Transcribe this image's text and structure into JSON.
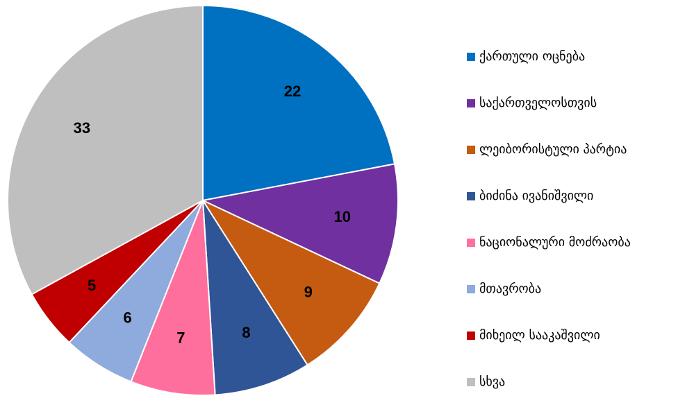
{
  "chart_data": {
    "type": "pie",
    "categories": [
      "ქართული ოცნება",
      "საქართველოსთვის",
      "ლეიბორისტული პარტია",
      "ბიძინა ივანიშვილი",
      "ნაციონალური მოძრაობა",
      "მთავრობა",
      "მიხეილ სააკაშვილი",
      "სხვა"
    ],
    "values": [
      22,
      10,
      9,
      8,
      7,
      6,
      5,
      33
    ],
    "colors": [
      "#0070c0",
      "#7030a0",
      "#c55a11",
      "#2f5597",
      "#ff6f9e",
      "#8faadc",
      "#c00000",
      "#bfbfbf"
    ],
    "legend": "right"
  }
}
